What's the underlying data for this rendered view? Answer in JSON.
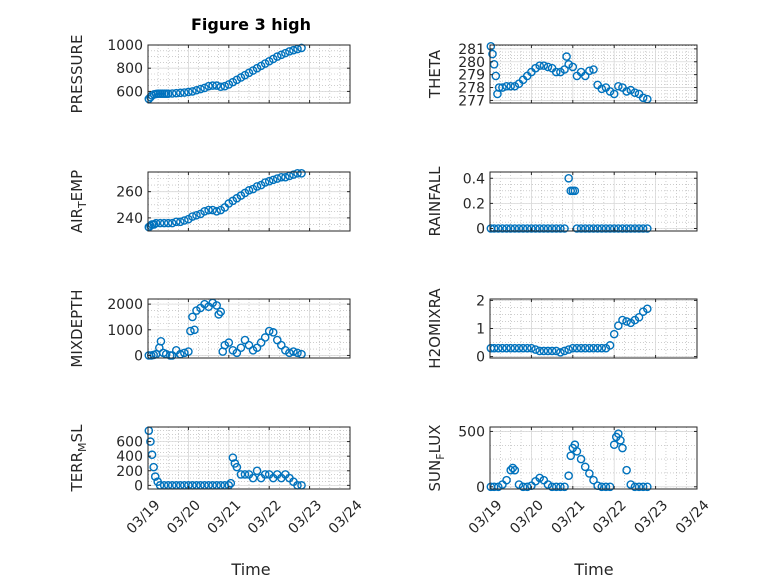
{
  "figure": {
    "title": "Figure 3 high",
    "xlabel": "Time"
  },
  "colors": {
    "marker": "#0072BD",
    "axis": "#262626",
    "grid": "#b0b0b0"
  },
  "chart_data": [
    {
      "type": "scatter",
      "title": "Figure 3 high",
      "ylabel": "PRESSURE",
      "xlim": [
        0,
        5
      ],
      "ylim": [
        500,
        1000
      ],
      "yticks": [
        600,
        800,
        1000
      ],
      "ytick_labels": [
        "600",
        "800",
        "1000"
      ],
      "x": [
        0.02,
        0.06,
        0.1,
        0.15,
        0.2,
        0.25,
        0.3,
        0.35,
        0.4,
        0.45,
        0.5,
        0.6,
        0.7,
        0.8,
        0.9,
        1.0,
        1.1,
        1.2,
        1.3,
        1.4,
        1.5,
        1.6,
        1.7,
        1.8,
        1.9,
        2.0,
        2.1,
        2.2,
        2.3,
        2.4,
        2.5,
        2.6,
        2.7,
        2.8,
        2.9,
        3.0,
        3.1,
        3.2,
        3.3,
        3.4,
        3.5,
        3.6,
        3.7,
        3.8
      ],
      "y": [
        535,
        550,
        565,
        575,
        578,
        580,
        580,
        580,
        580,
        580,
        580,
        582,
        585,
        588,
        590,
        595,
        600,
        610,
        620,
        630,
        645,
        650,
        650,
        640,
        645,
        660,
        680,
        700,
        720,
        740,
        760,
        780,
        800,
        820,
        840,
        860,
        880,
        900,
        915,
        930,
        945,
        955,
        965,
        975
      ]
    },
    {
      "type": "scatter",
      "ylabel": "THETA",
      "xlim": [
        0,
        5
      ],
      "ylim": [
        276.8,
        281.3
      ],
      "yticks": [
        277,
        278,
        279,
        280,
        281
      ],
      "ytick_labels": [
        "277",
        "278",
        "279",
        "280",
        "281"
      ],
      "x": [
        0.02,
        0.06,
        0.1,
        0.14,
        0.18,
        0.22,
        0.3,
        0.4,
        0.5,
        0.6,
        0.7,
        0.8,
        0.9,
        1.0,
        1.1,
        1.2,
        1.3,
        1.4,
        1.5,
        1.6,
        1.7,
        1.8,
        1.85,
        1.9,
        2.0,
        2.1,
        2.2,
        2.3,
        2.4,
        2.5,
        2.6,
        2.7,
        2.8,
        2.9,
        3.0,
        3.1,
        3.2,
        3.3,
        3.4,
        3.5,
        3.6,
        3.7,
        3.8
      ],
      "y": [
        281.2,
        280.6,
        279.8,
        278.9,
        277.5,
        278.0,
        278.0,
        278.1,
        278.1,
        278.1,
        278.3,
        278.6,
        278.9,
        279.2,
        279.5,
        279.7,
        279.7,
        279.6,
        279.5,
        279.2,
        279.2,
        279.4,
        280.4,
        279.8,
        279.6,
        278.9,
        279.2,
        278.9,
        279.3,
        279.4,
        278.2,
        277.9,
        278.0,
        277.7,
        277.5,
        278.1,
        278.0,
        277.7,
        277.8,
        277.6,
        277.5,
        277.2,
        277.1
      ]
    },
    {
      "type": "scatter",
      "ylabel": "AIR_TEMP",
      "xlim": [
        0,
        5
      ],
      "ylim": [
        230,
        275
      ],
      "yticks": [
        240,
        260
      ],
      "ytick_labels": [
        "240",
        "260"
      ],
      "x": [
        0.02,
        0.06,
        0.1,
        0.15,
        0.2,
        0.3,
        0.4,
        0.5,
        0.6,
        0.7,
        0.8,
        0.9,
        1.0,
        1.1,
        1.2,
        1.3,
        1.4,
        1.5,
        1.6,
        1.7,
        1.8,
        1.9,
        2.0,
        2.1,
        2.2,
        2.3,
        2.4,
        2.5,
        2.6,
        2.7,
        2.8,
        2.9,
        3.0,
        3.1,
        3.2,
        3.3,
        3.4,
        3.5,
        3.6,
        3.7,
        3.8
      ],
      "y": [
        233,
        234,
        235,
        235,
        236,
        236,
        236,
        236,
        236,
        237,
        237,
        238,
        239,
        241,
        242,
        243,
        245,
        246,
        246,
        245,
        246,
        248,
        251,
        253,
        255,
        257,
        259,
        261,
        262,
        264,
        265,
        267,
        268,
        269,
        270,
        271,
        271,
        272,
        273,
        274,
        274
      ]
    },
    {
      "type": "scatter",
      "ylabel": "RAINFALL",
      "xlim": [
        0,
        5
      ],
      "ylim": [
        -0.02,
        0.45
      ],
      "yticks": [
        0,
        0.2,
        0.4
      ],
      "ytick_labels": [
        "0",
        "0.2",
        "0.4"
      ],
      "x": [
        0.02,
        0.1,
        0.2,
        0.3,
        0.4,
        0.5,
        0.6,
        0.7,
        0.8,
        0.9,
        1.0,
        1.1,
        1.2,
        1.3,
        1.4,
        1.5,
        1.6,
        1.7,
        1.8,
        1.9,
        1.95,
        2.0,
        2.05,
        2.1,
        2.2,
        2.3,
        2.4,
        2.5,
        2.6,
        2.7,
        2.8,
        2.9,
        3.0,
        3.1,
        3.2,
        3.3,
        3.4,
        3.5,
        3.6,
        3.7,
        3.8
      ],
      "y": [
        0,
        0,
        0,
        0,
        0,
        0,
        0,
        0,
        0,
        0,
        0,
        0,
        0,
        0,
        0,
        0,
        0,
        0,
        0,
        0.4,
        0.3,
        0.3,
        0.3,
        0,
        0,
        0,
        0,
        0,
        0,
        0,
        0,
        0,
        0,
        0,
        0,
        0,
        0,
        0,
        0,
        0,
        0
      ]
    },
    {
      "type": "scatter",
      "ylabel": "MIXDEPTH",
      "xlim": [
        0,
        5
      ],
      "ylim": [
        -100,
        2200
      ],
      "yticks": [
        0,
        1000,
        2000
      ],
      "ytick_labels": [
        "0",
        "1000",
        "2000"
      ],
      "x": [
        0.02,
        0.08,
        0.14,
        0.2,
        0.28,
        0.32,
        0.38,
        0.45,
        0.55,
        0.6,
        0.7,
        0.8,
        0.9,
        1.0,
        1.05,
        1.1,
        1.15,
        1.2,
        1.3,
        1.4,
        1.5,
        1.6,
        1.7,
        1.75,
        1.8,
        1.85,
        1.9,
        2.0,
        2.1,
        2.2,
        2.3,
        2.4,
        2.5,
        2.6,
        2.7,
        2.8,
        2.9,
        3.0,
        3.1,
        3.2,
        3.3,
        3.4,
        3.5,
        3.6,
        3.7,
        3.8
      ],
      "y": [
        0,
        0,
        20,
        50,
        300,
        550,
        100,
        50,
        0,
        0,
        200,
        50,
        100,
        150,
        950,
        1500,
        1000,
        1750,
        1850,
        2000,
        1900,
        2050,
        1950,
        1600,
        1700,
        150,
        400,
        500,
        200,
        100,
        300,
        600,
        400,
        200,
        300,
        500,
        700,
        950,
        900,
        600,
        400,
        200,
        100,
        150,
        100,
        50
      ]
    },
    {
      "type": "scatter",
      "ylabel": "H2OMIXRA",
      "xlim": [
        0,
        5
      ],
      "ylim": [
        -0.05,
        2.05
      ],
      "yticks": [
        0,
        1,
        2
      ],
      "ytick_labels": [
        "0",
        "1",
        "2"
      ],
      "x": [
        0.02,
        0.1,
        0.2,
        0.3,
        0.4,
        0.5,
        0.6,
        0.7,
        0.8,
        0.9,
        1.0,
        1.1,
        1.2,
        1.3,
        1.4,
        1.5,
        1.6,
        1.7,
        1.8,
        1.9,
        2.0,
        2.1,
        2.2,
        2.3,
        2.4,
        2.5,
        2.6,
        2.7,
        2.8,
        2.9,
        3.0,
        3.1,
        3.2,
        3.3,
        3.4,
        3.5,
        3.6,
        3.7,
        3.8
      ],
      "y": [
        0.3,
        0.3,
        0.3,
        0.3,
        0.3,
        0.3,
        0.3,
        0.3,
        0.3,
        0.3,
        0.3,
        0.25,
        0.2,
        0.2,
        0.2,
        0.2,
        0.2,
        0.15,
        0.2,
        0.25,
        0.3,
        0.3,
        0.3,
        0.3,
        0.3,
        0.3,
        0.3,
        0.3,
        0.3,
        0.4,
        0.8,
        1.1,
        1.3,
        1.25,
        1.2,
        1.3,
        1.4,
        1.6,
        1.7
      ]
    },
    {
      "type": "scatter",
      "ylabel": "TERR_MSL",
      "xlim": [
        0,
        5
      ],
      "ylim": [
        -50,
        800
      ],
      "yticks": [
        0,
        200,
        400,
        600
      ],
      "ytick_labels": [
        "0",
        "200",
        "400",
        "600"
      ],
      "x": [
        0.02,
        0.06,
        0.1,
        0.14,
        0.18,
        0.24,
        0.3,
        0.4,
        0.5,
        0.6,
        0.7,
        0.8,
        0.9,
        1.0,
        1.1,
        1.2,
        1.3,
        1.4,
        1.5,
        1.6,
        1.7,
        1.8,
        1.9,
        2.0,
        2.05,
        2.1,
        2.15,
        2.2,
        2.3,
        2.4,
        2.5,
        2.6,
        2.7,
        2.8,
        2.9,
        3.0,
        3.1,
        3.2,
        3.3,
        3.4,
        3.5,
        3.6,
        3.7,
        3.8
      ],
      "y": [
        750,
        600,
        420,
        250,
        120,
        50,
        0,
        0,
        0,
        0,
        0,
        0,
        0,
        0,
        0,
        0,
        0,
        0,
        0,
        0,
        0,
        0,
        0,
        0,
        30,
        380,
        300,
        250,
        150,
        150,
        150,
        100,
        200,
        100,
        150,
        150,
        100,
        150,
        100,
        150,
        100,
        50,
        0,
        0
      ]
    },
    {
      "type": "scatter",
      "ylabel": "SUN_FLUX",
      "xlim": [
        0,
        5
      ],
      "ylim": [
        -20,
        540
      ],
      "yticks": [
        0,
        500
      ],
      "ytick_labels": [
        "0",
        "500"
      ],
      "x": [
        0.02,
        0.1,
        0.2,
        0.3,
        0.4,
        0.5,
        0.55,
        0.6,
        0.7,
        0.8,
        0.9,
        1.0,
        1.1,
        1.2,
        1.3,
        1.4,
        1.5,
        1.6,
        1.7,
        1.8,
        1.9,
        1.95,
        2.0,
        2.05,
        2.1,
        2.2,
        2.3,
        2.4,
        2.5,
        2.6,
        2.7,
        2.8,
        2.9,
        3.0,
        3.05,
        3.1,
        3.15,
        3.2,
        3.3,
        3.4,
        3.5,
        3.6,
        3.7,
        3.8
      ],
      "y": [
        0,
        0,
        0,
        20,
        60,
        150,
        170,
        150,
        20,
        0,
        0,
        10,
        50,
        80,
        60,
        20,
        0,
        0,
        0,
        0,
        100,
        280,
        350,
        380,
        320,
        250,
        180,
        120,
        60,
        10,
        0,
        0,
        0,
        380,
        450,
        480,
        420,
        350,
        150,
        20,
        0,
        0,
        0,
        0
      ]
    }
  ],
  "xaxis": {
    "xlim": [
      0,
      5
    ],
    "ticks": [
      0,
      1,
      2,
      3,
      4,
      5
    ],
    "tick_labels": [
      "03/19",
      "03/20",
      "03/21",
      "03/22",
      "03/23",
      "03/24"
    ]
  }
}
